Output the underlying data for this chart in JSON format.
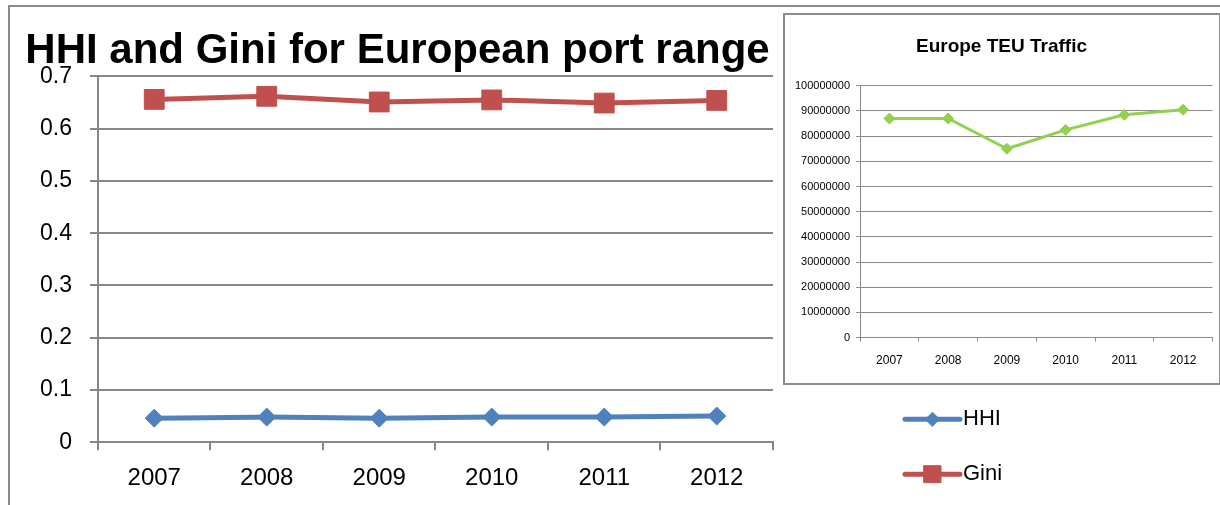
{
  "chart_data": [
    {
      "type": "line",
      "title": "HHI and Gini for European port range",
      "categories": [
        "2007",
        "2008",
        "2009",
        "2010",
        "2011",
        "2012"
      ],
      "series": [
        {
          "name": "HHI",
          "color": "#4f81bd",
          "marker": "diamond",
          "values": [
            0.046,
            0.048,
            0.046,
            0.048,
            0.048,
            0.05
          ]
        },
        {
          "name": "Gini",
          "color": "#c0504d",
          "marker": "square",
          "values": [
            0.656,
            0.662,
            0.651,
            0.655,
            0.649,
            0.654
          ]
        }
      ],
      "ylim": [
        0,
        0.7
      ],
      "yticks": [
        0,
        0.1,
        0.2,
        0.3,
        0.4,
        0.5,
        0.6,
        0.7
      ],
      "grid": "y",
      "legend": "right"
    },
    {
      "type": "line",
      "title": "Europe TEU Traffic",
      "categories": [
        "2007",
        "2008",
        "2009",
        "2010",
        "2011",
        "2012"
      ],
      "series": [
        {
          "color": "#92d050",
          "marker": "diamond",
          "values": [
            87000000,
            87000000,
            75000000,
            82500000,
            88500000,
            90500000
          ]
        }
      ],
      "ylim": [
        0,
        100000000
      ],
      "yticks": [
        0,
        10000000,
        20000000,
        30000000,
        40000000,
        50000000,
        60000000,
        70000000,
        80000000,
        90000000,
        100000000
      ],
      "grid": "y"
    }
  ]
}
